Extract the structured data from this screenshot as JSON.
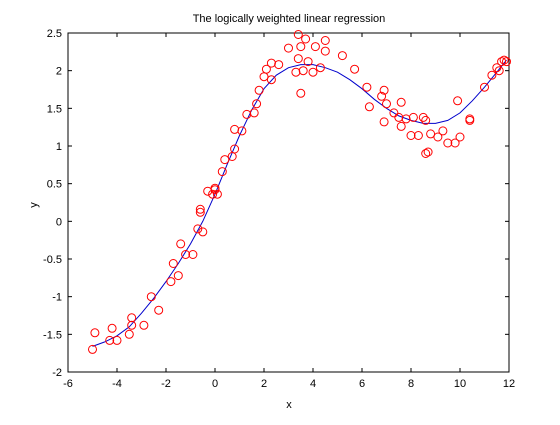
{
  "chart_data": {
    "type": "scatter",
    "title": "The logically weighted linear regression",
    "xlabel": "x",
    "ylabel": "y",
    "xlim": [
      -6,
      12
    ],
    "ylim": [
      -2,
      2.5
    ],
    "xticks": [
      "-6",
      "-4",
      "-2",
      "0",
      "2",
      "4",
      "6",
      "8",
      "10",
      "12"
    ],
    "yticks": [
      "-2",
      "-1.5",
      "-1",
      "-0.5",
      "0",
      "0.5",
      "1",
      "1.5",
      "2",
      "2.5"
    ],
    "grid": false,
    "colors": {
      "points": "#ff0000",
      "curve": "#0000cc",
      "axes": "#000000"
    },
    "series": [
      {
        "kind": "scatter-points",
        "marker": "open-circle",
        "points": [
          [
            -5.0,
            -1.7
          ],
          [
            -4.9,
            -1.48
          ],
          [
            -4.3,
            -1.58
          ],
          [
            -4.2,
            -1.42
          ],
          [
            -4.0,
            -1.58
          ],
          [
            -3.5,
            -1.5
          ],
          [
            -3.4,
            -1.28
          ],
          [
            -3.4,
            -1.38
          ],
          [
            -2.9,
            -1.38
          ],
          [
            -2.6,
            -1.0
          ],
          [
            -2.3,
            -1.18
          ],
          [
            -1.8,
            -0.8
          ],
          [
            -1.7,
            -0.56
          ],
          [
            -1.5,
            -0.72
          ],
          [
            -1.4,
            -0.3
          ],
          [
            -1.2,
            -0.44
          ],
          [
            -0.9,
            -0.44
          ],
          [
            -0.7,
            -0.1
          ],
          [
            -0.6,
            0.12
          ],
          [
            -0.6,
            0.16
          ],
          [
            -0.5,
            -0.14
          ],
          [
            -0.3,
            0.4
          ],
          [
            -0.1,
            0.36
          ],
          [
            0.0,
            0.42
          ],
          [
            0.0,
            0.44
          ],
          [
            0.1,
            0.36
          ],
          [
            0.3,
            0.66
          ],
          [
            0.4,
            0.82
          ],
          [
            0.7,
            0.86
          ],
          [
            0.8,
            0.96
          ],
          [
            0.8,
            1.22
          ],
          [
            1.1,
            1.2
          ],
          [
            1.3,
            1.42
          ],
          [
            1.6,
            1.44
          ],
          [
            1.7,
            1.56
          ],
          [
            1.8,
            1.74
          ],
          [
            2.0,
            1.92
          ],
          [
            2.1,
            2.02
          ],
          [
            2.3,
            1.88
          ],
          [
            2.3,
            2.1
          ],
          [
            2.6,
            2.08
          ],
          [
            3.0,
            2.3
          ],
          [
            3.3,
            1.98
          ],
          [
            3.4,
            2.48
          ],
          [
            3.4,
            2.16
          ],
          [
            3.5,
            1.7
          ],
          [
            3.5,
            2.32
          ],
          [
            3.6,
            2.0
          ],
          [
            3.7,
            2.42
          ],
          [
            3.8,
            2.12
          ],
          [
            4.0,
            1.98
          ],
          [
            4.1,
            2.32
          ],
          [
            4.3,
            2.04
          ],
          [
            4.5,
            2.26
          ],
          [
            4.5,
            2.4
          ],
          [
            5.2,
            2.2
          ],
          [
            5.7,
            2.02
          ],
          [
            6.2,
            1.78
          ],
          [
            6.3,
            1.52
          ],
          [
            6.8,
            1.66
          ],
          [
            6.9,
            1.74
          ],
          [
            6.9,
            1.32
          ],
          [
            7.0,
            1.56
          ],
          [
            7.3,
            1.44
          ],
          [
            7.5,
            1.38
          ],
          [
            7.6,
            1.58
          ],
          [
            7.6,
            1.26
          ],
          [
            7.8,
            1.36
          ],
          [
            8.0,
            1.14
          ],
          [
            8.1,
            1.38
          ],
          [
            8.3,
            1.14
          ],
          [
            8.5,
            1.38
          ],
          [
            8.6,
            1.34
          ],
          [
            8.6,
            0.9
          ],
          [
            8.7,
            0.92
          ],
          [
            8.8,
            1.16
          ],
          [
            9.1,
            1.12
          ],
          [
            9.3,
            1.2
          ],
          [
            9.5,
            1.04
          ],
          [
            9.8,
            1.04
          ],
          [
            9.9,
            1.6
          ],
          [
            10.0,
            1.12
          ],
          [
            10.4,
            1.34
          ],
          [
            10.4,
            1.36
          ],
          [
            11.0,
            1.78
          ],
          [
            11.3,
            1.94
          ],
          [
            11.5,
            2.04
          ],
          [
            11.6,
            2.0
          ],
          [
            11.7,
            2.12
          ],
          [
            11.8,
            2.14
          ],
          [
            11.9,
            2.12
          ]
        ]
      },
      {
        "kind": "fitted-curve",
        "points": [
          [
            -5.0,
            -1.66
          ],
          [
            -4.5,
            -1.6
          ],
          [
            -4.0,
            -1.52
          ],
          [
            -3.5,
            -1.4
          ],
          [
            -3.0,
            -1.22
          ],
          [
            -2.5,
            -1.02
          ],
          [
            -2.0,
            -0.8
          ],
          [
            -1.5,
            -0.56
          ],
          [
            -1.0,
            -0.3
          ],
          [
            -0.5,
            0.0
          ],
          [
            0.0,
            0.36
          ],
          [
            0.5,
            0.76
          ],
          [
            1.0,
            1.14
          ],
          [
            1.5,
            1.48
          ],
          [
            2.0,
            1.76
          ],
          [
            2.5,
            1.94
          ],
          [
            3.0,
            2.04
          ],
          [
            3.5,
            2.08
          ],
          [
            4.0,
            2.08
          ],
          [
            4.5,
            2.04
          ],
          [
            5.0,
            1.98
          ],
          [
            5.5,
            1.88
          ],
          [
            6.0,
            1.76
          ],
          [
            6.5,
            1.62
          ],
          [
            7.0,
            1.5
          ],
          [
            7.5,
            1.4
          ],
          [
            8.0,
            1.34
          ],
          [
            8.5,
            1.3
          ],
          [
            9.0,
            1.3
          ],
          [
            9.5,
            1.34
          ],
          [
            10.0,
            1.44
          ],
          [
            10.5,
            1.6
          ],
          [
            11.0,
            1.78
          ],
          [
            11.5,
            1.98
          ],
          [
            11.9,
            2.14
          ]
        ]
      }
    ]
  }
}
